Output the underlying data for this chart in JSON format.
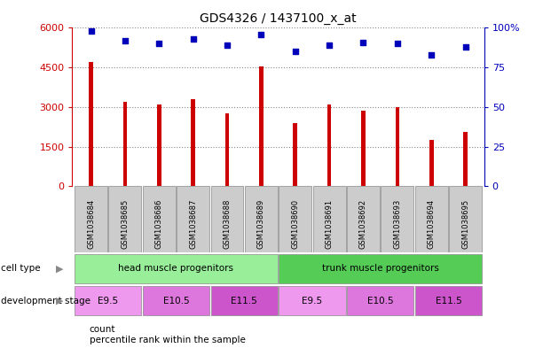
{
  "title": "GDS4326 / 1437100_x_at",
  "samples": [
    "GSM1038684",
    "GSM1038685",
    "GSM1038686",
    "GSM1038687",
    "GSM1038688",
    "GSM1038689",
    "GSM1038690",
    "GSM1038691",
    "GSM1038692",
    "GSM1038693",
    "GSM1038694",
    "GSM1038695"
  ],
  "counts": [
    4700,
    3200,
    3100,
    3300,
    2750,
    4550,
    2400,
    3100,
    2850,
    3000,
    1750,
    2050
  ],
  "percentiles": [
    98,
    92,
    90,
    93,
    89,
    96,
    85,
    89,
    91,
    90,
    83,
    88
  ],
  "ylim_left": [
    0,
    6000
  ],
  "ylim_right": [
    0,
    100
  ],
  "yticks_left": [
    0,
    1500,
    3000,
    4500,
    6000
  ],
  "yticks_right": [
    0,
    25,
    50,
    75,
    100
  ],
  "bar_color": "#cc0000",
  "dot_color": "#0000bb",
  "bar_width": 0.12,
  "cell_type_groups": [
    {
      "label": "head muscle progenitors",
      "start": 0,
      "end": 5,
      "color": "#99ee99"
    },
    {
      "label": "trunk muscle progenitors",
      "start": 6,
      "end": 11,
      "color": "#55cc55"
    }
  ],
  "dev_stage_groups": [
    {
      "label": "E9.5",
      "start": 0,
      "end": 1,
      "color": "#ee99ee"
    },
    {
      "label": "E10.5",
      "start": 2,
      "end": 3,
      "color": "#dd77dd"
    },
    {
      "label": "E11.5",
      "start": 4,
      "end": 5,
      "color": "#cc55cc"
    },
    {
      "label": "E9.5",
      "start": 6,
      "end": 7,
      "color": "#ee99ee"
    },
    {
      "label": "E10.5",
      "start": 8,
      "end": 9,
      "color": "#dd77dd"
    },
    {
      "label": "E11.5",
      "start": 10,
      "end": 11,
      "color": "#cc55cc"
    }
  ],
  "tick_label_bg": "#cccccc",
  "background_color": "#ffffff",
  "fig_width": 6.03,
  "fig_height": 3.93,
  "dpi": 100
}
